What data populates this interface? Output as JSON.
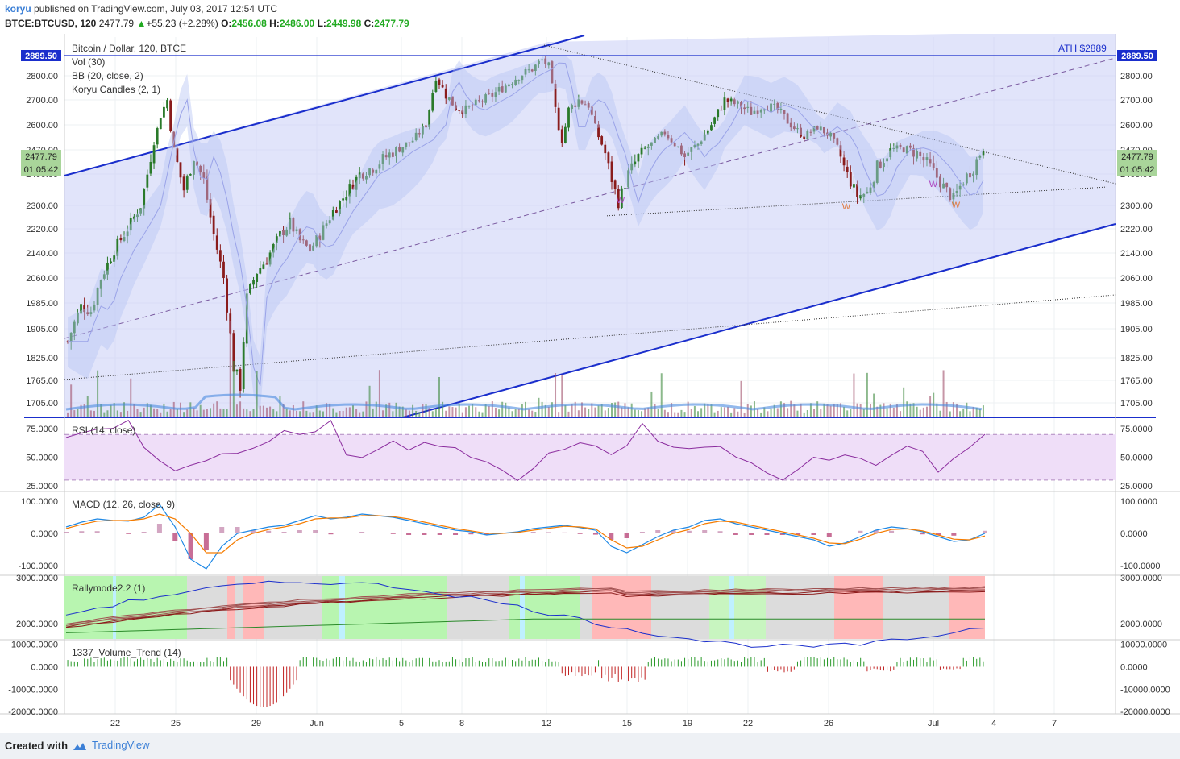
{
  "header": {
    "user": "koryu",
    "published_text": "published on TradingView.com, July 03, 2017 12:54 UTC",
    "symbol": "BTCE:BTCUSD, 120",
    "last": "2477.79",
    "change": "+55.23 (+2.28%)",
    "o_label": "O:",
    "o": "2456.08",
    "h_label": "H:",
    "h": "2486.00",
    "l_label": "L:",
    "l": "2449.98",
    "c_label": "C:",
    "c": "2477.79"
  },
  "legend": {
    "title": "Bitcoin / Dollar, 120, BTCE",
    "vol": "Vol (30)",
    "bb": "BB (20, close, 2)",
    "koryu": "Koryu Candles (2, 1)",
    "ath": "ATH $2889"
  },
  "price_badges": {
    "ath": "2889.50",
    "last": "2477.79",
    "countdown": "01:05:42"
  },
  "colors": {
    "up": "#2a7a2a",
    "down": "#8a1c1c",
    "trend": "#1a2ecc",
    "band": "#c9cdf5",
    "rsi": "#8b2c9e",
    "macd": "#1e88e5",
    "signal": "#f57c00",
    "accent": "#3b7fd6"
  },
  "chart_data": [
    {
      "type": "candlestick",
      "title": "Bitcoin / Dollar, 120, BTCE",
      "ylim": [
        1650,
        2950
      ],
      "y_ticks": [
        "2800.00",
        "2700.00",
        "2600.00",
        "2470.00",
        "2400.00",
        "2300.00",
        "2220.00",
        "2140.00",
        "2060.00",
        "1985.00",
        "1905.00",
        "1825.00",
        "1765.00",
        "1705.00"
      ],
      "x_ticks": [
        "22",
        "25",
        "29",
        "Jun",
        "5",
        "8",
        "12",
        "15",
        "19",
        "22",
        "26",
        "Jul",
        "4",
        "7"
      ],
      "close_path": [
        {
          "x": 0,
          "y": 1870
        },
        {
          "x": 4,
          "y": 1975
        },
        {
          "x": 7,
          "y": 1960
        },
        {
          "x": 10,
          "y": 2060
        },
        {
          "x": 14,
          "y": 2150
        },
        {
          "x": 18,
          "y": 2220
        },
        {
          "x": 22,
          "y": 2300
        },
        {
          "x": 25,
          "y": 2450
        },
        {
          "x": 28,
          "y": 2640
        },
        {
          "x": 30,
          "y": 2700
        },
        {
          "x": 32,
          "y": 2470
        },
        {
          "x": 35,
          "y": 2350
        },
        {
          "x": 38,
          "y": 2450
        },
        {
          "x": 41,
          "y": 2380
        },
        {
          "x": 44,
          "y": 2200
        },
        {
          "x": 47,
          "y": 2060
        },
        {
          "x": 50,
          "y": 1800
        },
        {
          "x": 52,
          "y": 1750
        },
        {
          "x": 54,
          "y": 2000
        },
        {
          "x": 57,
          "y": 2080
        },
        {
          "x": 60,
          "y": 2120
        },
        {
          "x": 64,
          "y": 2200
        },
        {
          "x": 67,
          "y": 2240
        },
        {
          "x": 70,
          "y": 2180
        },
        {
          "x": 73,
          "y": 2150
        },
        {
          "x": 76,
          "y": 2200
        },
        {
          "x": 80,
          "y": 2280
        },
        {
          "x": 84,
          "y": 2340
        },
        {
          "x": 88,
          "y": 2400
        },
        {
          "x": 92,
          "y": 2420
        },
        {
          "x": 96,
          "y": 2450
        },
        {
          "x": 100,
          "y": 2480
        },
        {
          "x": 104,
          "y": 2520
        },
        {
          "x": 108,
          "y": 2600
        },
        {
          "x": 111,
          "y": 2800
        },
        {
          "x": 114,
          "y": 2720
        },
        {
          "x": 117,
          "y": 2670
        },
        {
          "x": 120,
          "y": 2660
        },
        {
          "x": 124,
          "y": 2690
        },
        {
          "x": 128,
          "y": 2720
        },
        {
          "x": 132,
          "y": 2760
        },
        {
          "x": 136,
          "y": 2800
        },
        {
          "x": 140,
          "y": 2830
        },
        {
          "x": 143,
          "y": 2870
        },
        {
          "x": 145,
          "y": 2840
        },
        {
          "x": 147,
          "y": 2660
        },
        {
          "x": 149,
          "y": 2520
        },
        {
          "x": 151,
          "y": 2660
        },
        {
          "x": 154,
          "y": 2700
        },
        {
          "x": 157,
          "y": 2680
        },
        {
          "x": 160,
          "y": 2540
        },
        {
          "x": 163,
          "y": 2420
        },
        {
          "x": 166,
          "y": 2310
        },
        {
          "x": 169,
          "y": 2400
        },
        {
          "x": 172,
          "y": 2450
        },
        {
          "x": 176,
          "y": 2500
        },
        {
          "x": 180,
          "y": 2560
        },
        {
          "x": 183,
          "y": 2500
        },
        {
          "x": 186,
          "y": 2450
        },
        {
          "x": 190,
          "y": 2500
        },
        {
          "x": 194,
          "y": 2600
        },
        {
          "x": 198,
          "y": 2700
        },
        {
          "x": 202,
          "y": 2680
        },
        {
          "x": 206,
          "y": 2650
        },
        {
          "x": 210,
          "y": 2680
        },
        {
          "x": 214,
          "y": 2660
        },
        {
          "x": 218,
          "y": 2600
        },
        {
          "x": 222,
          "y": 2540
        },
        {
          "x": 226,
          "y": 2590
        },
        {
          "x": 230,
          "y": 2540
        },
        {
          "x": 234,
          "y": 2420
        },
        {
          "x": 238,
          "y": 2330
        },
        {
          "x": 241,
          "y": 2340
        },
        {
          "x": 244,
          "y": 2420
        },
        {
          "x": 248,
          "y": 2470
        },
        {
          "x": 252,
          "y": 2480
        },
        {
          "x": 256,
          "y": 2460
        },
        {
          "x": 260,
          "y": 2420
        },
        {
          "x": 264,
          "y": 2360
        },
        {
          "x": 267,
          "y": 2320
        },
        {
          "x": 270,
          "y": 2380
        },
        {
          "x": 273,
          "y": 2420
        },
        {
          "x": 276,
          "y": 2478
        }
      ],
      "annotations": [
        "W",
        "W",
        "W",
        "W"
      ]
    },
    {
      "type": "line",
      "title": "RSI (14, close)",
      "ylim": [
        20,
        85
      ],
      "y_ticks": [
        "75.0000",
        "50.0000",
        "25.0000"
      ],
      "levels": [
        70,
        30
      ],
      "values": [
        66,
        70,
        74,
        78,
        84,
        58,
        44,
        38,
        45,
        50,
        56,
        52,
        58,
        66,
        72,
        68,
        74,
        82,
        52,
        48,
        56,
        62,
        58,
        64,
        60,
        56,
        52,
        46,
        40,
        30,
        40,
        52,
        56,
        60,
        58,
        54,
        62,
        78,
        64,
        58,
        60,
        56,
        58,
        52,
        48,
        34,
        30,
        42,
        50,
        48,
        52,
        46,
        44,
        50,
        58,
        54,
        38,
        50,
        56,
        70
      ]
    },
    {
      "type": "line",
      "title": "MACD (12, 26, close, 9)",
      "ylim": [
        -130,
        130
      ],
      "y_ticks": [
        "100.0000",
        "0.0000",
        "-100.0000"
      ],
      "macd": [
        20,
        35,
        45,
        40,
        38,
        50,
        90,
        20,
        -80,
        -110,
        -40,
        0,
        10,
        20,
        25,
        40,
        55,
        45,
        50,
        60,
        55,
        50,
        40,
        30,
        20,
        10,
        5,
        -5,
        0,
        5,
        15,
        20,
        25,
        18,
        10,
        -40,
        -60,
        -35,
        -10,
        10,
        20,
        40,
        45,
        30,
        20,
        10,
        0,
        -10,
        -20,
        -40,
        -30,
        -10,
        10,
        20,
        15,
        5,
        -10,
        -25,
        -20,
        0
      ],
      "signal": [
        15,
        28,
        38,
        40,
        40,
        45,
        60,
        45,
        0,
        -60,
        -60,
        -20,
        0,
        12,
        20,
        30,
        45,
        48,
        48,
        55,
        55,
        52,
        45,
        35,
        25,
        15,
        8,
        0,
        0,
        3,
        10,
        16,
        22,
        20,
        14,
        -20,
        -45,
        -40,
        -20,
        0,
        12,
        30,
        38,
        35,
        25,
        15,
        5,
        -5,
        -15,
        -30,
        -32,
        -18,
        0,
        12,
        14,
        8,
        -5,
        -18,
        -20,
        -8
      ]
    },
    {
      "type": "line",
      "title": "Rallymode2.2 (1)",
      "ylim": [
        1650,
        3050
      ],
      "y_ticks": [
        "3000.0000",
        "2000.0000"
      ]
    },
    {
      "type": "bar",
      "title": "1337_Volume_Trend (14)",
      "ylim": [
        -21000,
        12000
      ],
      "y_ticks": [
        "10000.0000",
        "0.0000",
        "-10000.0000",
        "-20000.0000"
      ]
    }
  ]
}
